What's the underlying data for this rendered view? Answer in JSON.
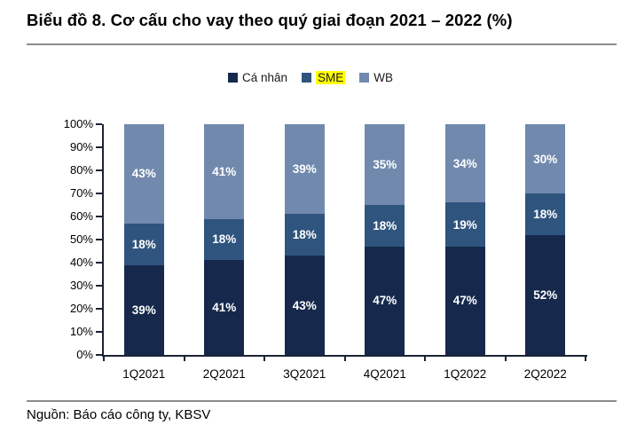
{
  "title": "Biểu đồ 8. Cơ cấu cho vay theo quý giai đoạn 2021 – 2022 (%)",
  "source": "Nguồn: Báo cáo công ty, KBSV",
  "legend": [
    {
      "label": "Cá nhân",
      "color": "#16294D",
      "highlight": null
    },
    {
      "label": "SME",
      "color": "#2F547E",
      "highlight": "#FFFF00"
    },
    {
      "label": "WB",
      "color": "#7189AD",
      "highlight": null
    }
  ],
  "chart_data": {
    "type": "bar",
    "stacked": true,
    "title": "Biểu đồ 8. Cơ cấu cho vay theo quý giai đoạn 2021 – 2022 (%)",
    "categories": [
      "1Q2021",
      "2Q2021",
      "3Q2021",
      "4Q2021",
      "1Q2022",
      "2Q2022"
    ],
    "series": [
      {
        "name": "Cá nhân",
        "color": "#16294D",
        "values": [
          39,
          41,
          43,
          47,
          47,
          52
        ]
      },
      {
        "name": "SME",
        "color": "#2F547E",
        "values": [
          18,
          18,
          18,
          18,
          19,
          18
        ]
      },
      {
        "name": "WB",
        "color": "#7189AD",
        "values": [
          43,
          41,
          39,
          35,
          34,
          30
        ]
      }
    ],
    "xlabel": "",
    "ylabel": "",
    "ylim": [
      0,
      100
    ],
    "ytick_step": 10,
    "ytick_suffix": "%",
    "value_label_suffix": "%",
    "legend_position": "top",
    "grid": false
  }
}
